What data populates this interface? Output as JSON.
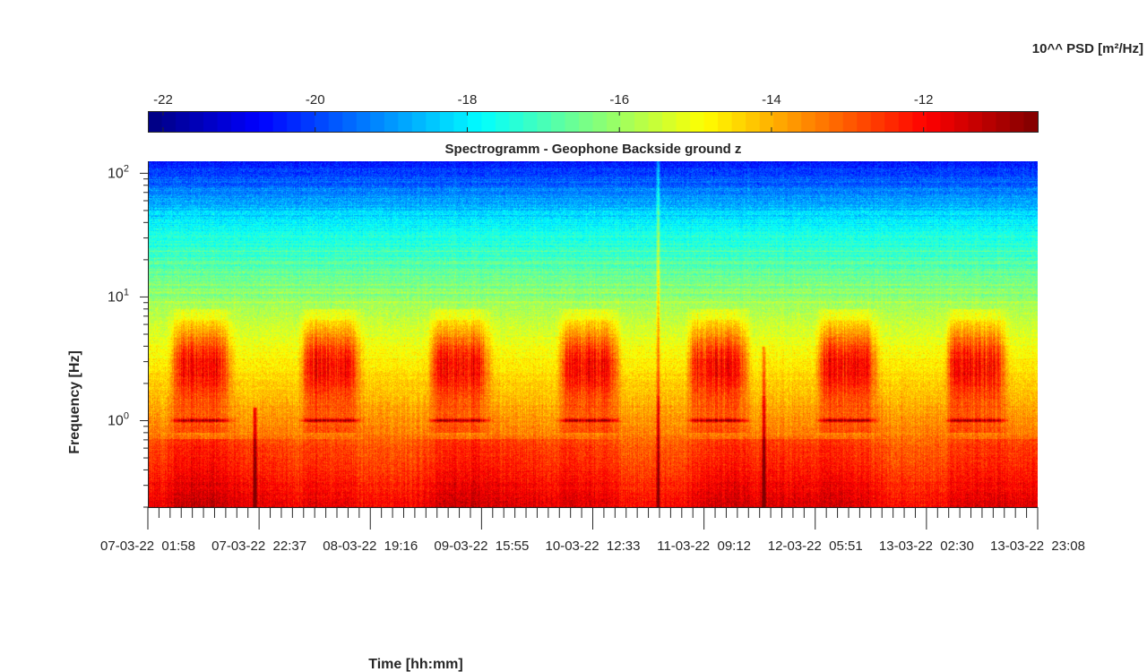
{
  "chart_data": {
    "type": "heatmap",
    "title": "Spectrogramm - Geophone Backside ground z",
    "xlabel": "Time [hh:mm]",
    "ylabel": "Frequency [Hz]",
    "y_scale": "log",
    "ylim": [
      0.2,
      125
    ],
    "y_ticks": [
      {
        "value": 1,
        "base": "10",
        "exp": "0"
      },
      {
        "value": 10,
        "base": "10",
        "exp": "1"
      },
      {
        "value": 100,
        "base": "10",
        "exp": "2"
      }
    ],
    "x_tick_labels": [
      "07-03-22  01:58",
      "07-03-22  22:37",
      "08-03-22  19:16",
      "09-03-22  15:55",
      "10-03-22  12:33",
      "11-03-22  09:12",
      "12-03-22  05:51",
      "13-03-22  02:30",
      "13-03-22  23:08"
    ],
    "colorbar": {
      "label": "10^^ PSD [m²/Hz]",
      "range": [
        -22.2,
        -10.5
      ],
      "ticks": [
        "-22",
        "-20",
        "-18",
        "-16",
        "-14",
        "-12"
      ],
      "tick_values": [
        -22,
        -20,
        -18,
        -16,
        -14,
        -12
      ],
      "colormap": "jet"
    },
    "features": {
      "daytime_bursts_hz": [
        2.0,
        5.0
      ],
      "persistent_line_hz": 1.0,
      "transient_events_time_fraction": [
        0.12,
        0.573,
        0.692
      ]
    }
  }
}
